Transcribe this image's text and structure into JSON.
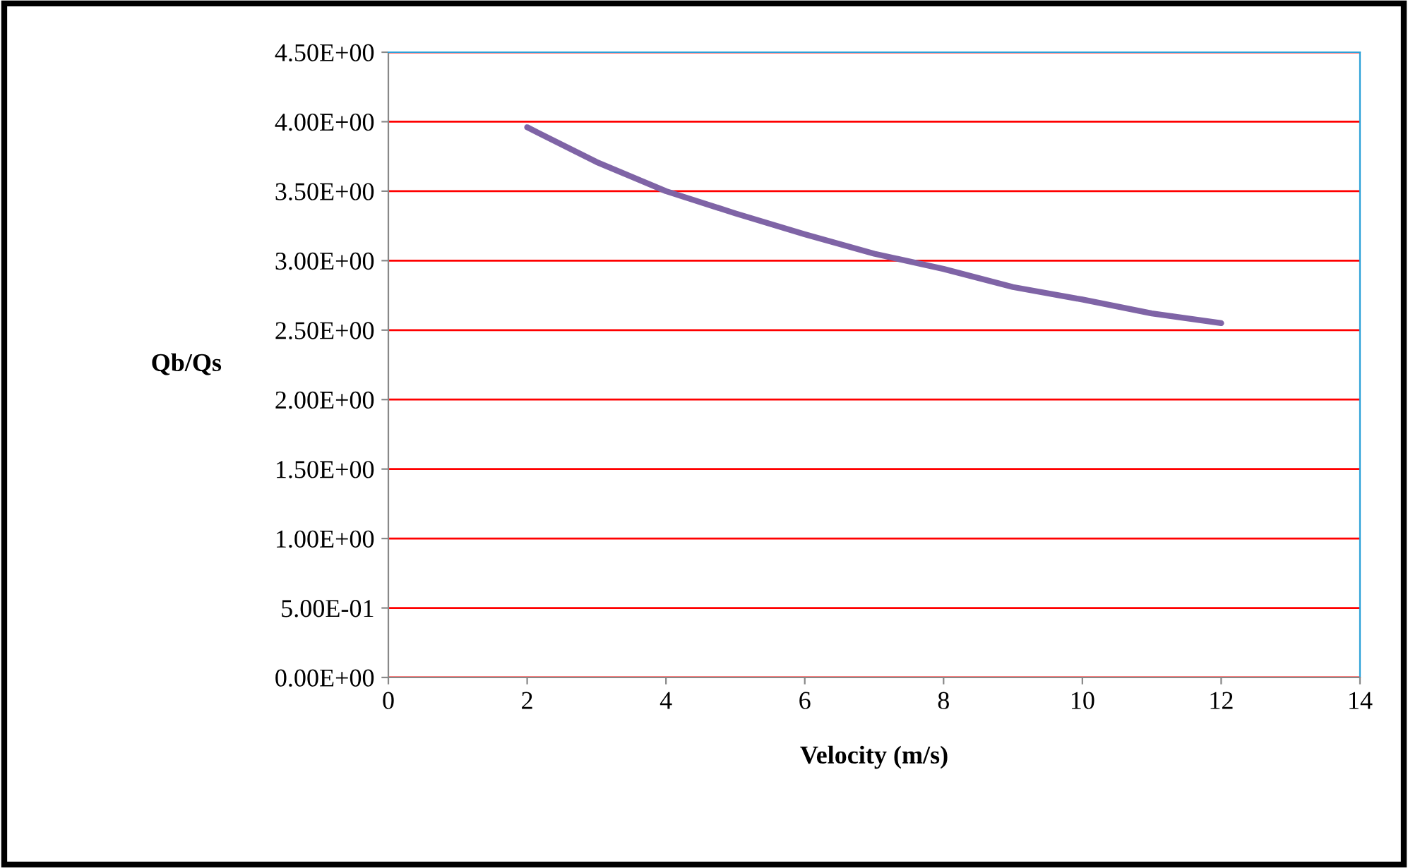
{
  "chart_data": {
    "type": "line",
    "xlabel": "Velocity (m/s)",
    "ylabel": "Qb/Qs",
    "x": [
      2,
      3,
      4,
      5,
      6,
      7,
      8,
      9,
      10,
      11,
      12
    ],
    "series": [
      {
        "color": "#7f64a6",
        "values": [
          3.96,
          3.71,
          3.5,
          3.34,
          3.19,
          3.05,
          2.94,
          2.81,
          2.72,
          2.62,
          2.55
        ]
      }
    ],
    "xlim": [
      0,
      14
    ],
    "xticks": [
      0,
      2,
      4,
      6,
      8,
      10,
      12,
      14
    ],
    "ylim": [
      0,
      4.5
    ],
    "yticks": [
      {
        "value": 0,
        "label": "0.00E+00"
      },
      {
        "value": 0.5,
        "label": "5.00E-01"
      },
      {
        "value": 1,
        "label": "1.00E+00"
      },
      {
        "value": 1.5,
        "label": "1.50E+00"
      },
      {
        "value": 2,
        "label": "2.00E+00"
      },
      {
        "value": 2.5,
        "label": "2.50E+00"
      },
      {
        "value": 3,
        "label": "3.00E+00"
      },
      {
        "value": 3.5,
        "label": "3.50E+00"
      },
      {
        "value": 4,
        "label": "4.00E+00"
      },
      {
        "value": 4.5,
        "label": "4.50E+00"
      }
    ],
    "grid": "y",
    "marker": "none",
    "line_style": "solid",
    "legend": false
  }
}
